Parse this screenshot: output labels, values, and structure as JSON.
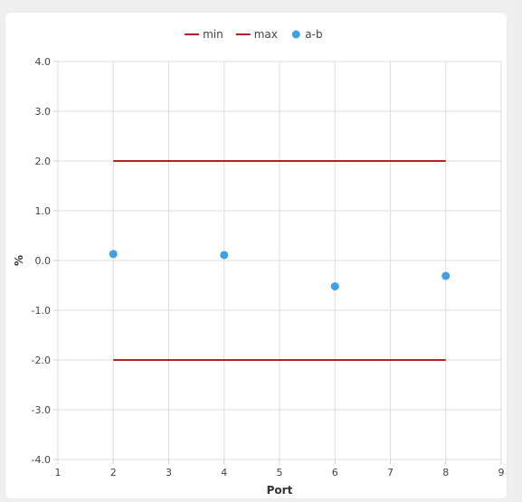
{
  "chart_data": {
    "type": "scatter",
    "title": "",
    "xlabel": "Port",
    "ylabel": "%",
    "xlim": [
      1,
      9
    ],
    "ylim": [
      -4,
      4
    ],
    "x_ticks": [
      "1",
      "2",
      "3",
      "4",
      "5",
      "6",
      "7",
      "8",
      "9"
    ],
    "y_ticks": [
      "4.0",
      "3.0",
      "2.0",
      "1.0",
      "0.0",
      "-1.0",
      "-2.0",
      "-3.0",
      "-4.0"
    ],
    "grid": true,
    "legend_position": "top-center",
    "series": [
      {
        "name": "min",
        "kind": "line",
        "color": "#b22222",
        "x": [
          2,
          8
        ],
        "y": [
          -2,
          -2
        ]
      },
      {
        "name": "max",
        "kind": "line",
        "color": "#b22222",
        "x": [
          2,
          8
        ],
        "y": [
          2,
          2
        ]
      },
      {
        "name": "a-b",
        "kind": "scatter",
        "color": "#3fa0e6",
        "x": [
          2,
          4,
          6,
          8
        ],
        "y": [
          0.13,
          0.11,
          -0.52,
          -0.31
        ]
      }
    ]
  }
}
